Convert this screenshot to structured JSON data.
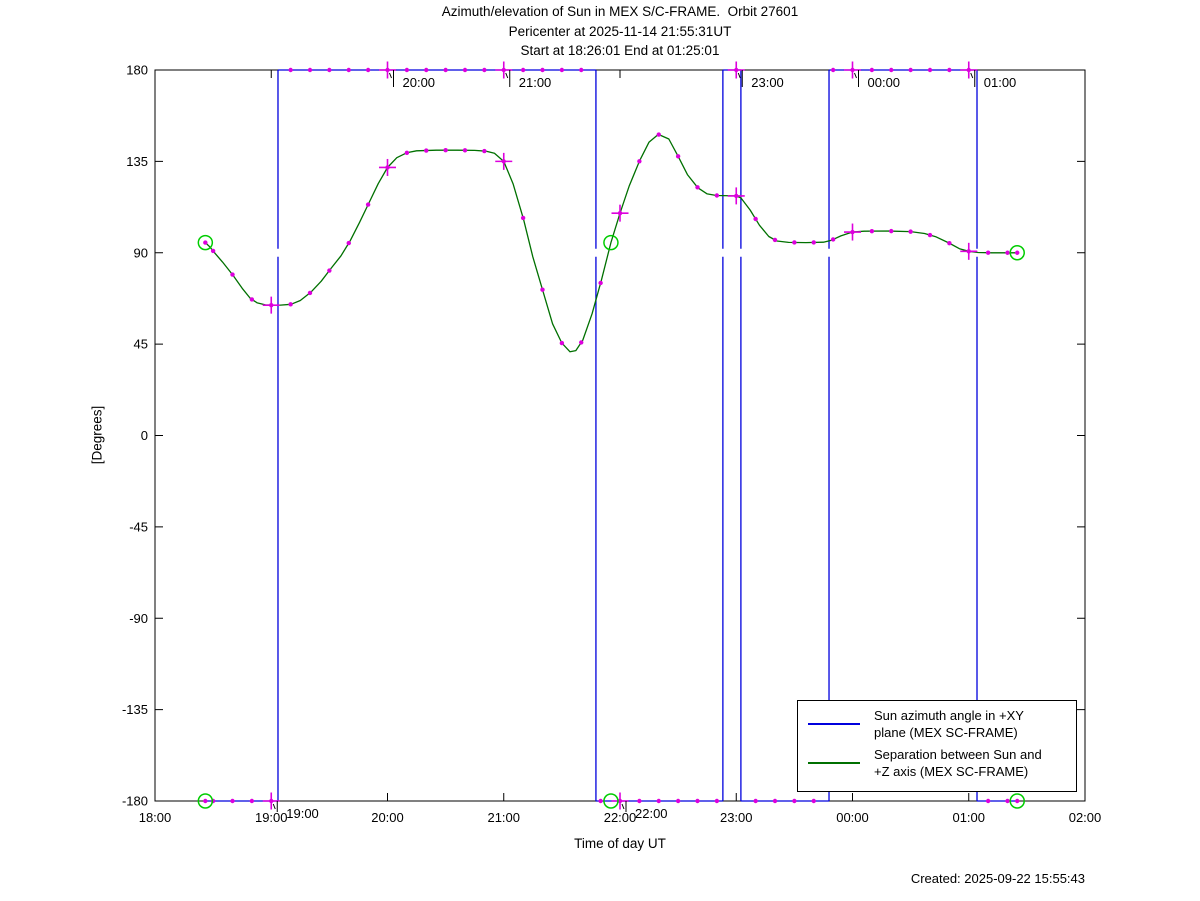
{
  "title": {
    "line1": "Azimuth/elevation of Sun in MEX S/C-FRAME.  Orbit 27601",
    "line2": "Pericenter at 2025-11-14 21:55:31UT",
    "line3": "Start at 18:26:01 End at 01:25:01"
  },
  "created": "Created: 2025-09-22 15:55:43",
  "legend": {
    "entries": [
      {
        "color": "#0000dd",
        "lines": [
          "Sun azimuth angle in +XY",
          "plane (MEX SC-FRAME)"
        ]
      },
      {
        "color": "#007000",
        "lines": [
          "Separation between Sun and",
          "+Z axis (MEX SC-FRAME)"
        ]
      }
    ]
  },
  "chart_data": {
    "type": "line",
    "title": "Azimuth/elevation of Sun in MEX S/C-FRAME. Orbit 27601",
    "xlabel": "Time of day UT",
    "ylabel": "[Degrees]",
    "xlim_hours": [
      18,
      26
    ],
    "ylim": [
      -180,
      180
    ],
    "x_ticks": [
      {
        "t": 18,
        "label": "18:00"
      },
      {
        "t": 19,
        "label": "19:00"
      },
      {
        "t": 20,
        "label": "20:00"
      },
      {
        "t": 21,
        "label": "21:00"
      },
      {
        "t": 22,
        "label": "22:00"
      },
      {
        "t": 23,
        "label": "23:00"
      },
      {
        "t": 24,
        "label": "00:00"
      },
      {
        "t": 25,
        "label": "01:00"
      },
      {
        "t": 26,
        "label": "02:00"
      }
    ],
    "y_ticks": [
      180,
      135,
      90,
      45,
      0,
      -45,
      -90,
      -135,
      -180
    ],
    "colors": {
      "azimuth": "#0000dd",
      "separation": "#007000",
      "marker": "#dd00dd",
      "event_circle": "#00cc00",
      "axis": "#000000"
    },
    "marker_interval_minutes": 10,
    "series": [
      {
        "name": "Sun azimuth angle in +XY plane (MEX SC-FRAME)",
        "style": "step",
        "segments": [
          [
            -180,
            18.433,
            19.058
          ],
          [
            180,
            19.058,
            21.793
          ],
          [
            -180,
            21.793,
            22.885
          ],
          [
            180,
            22.885,
            23.04
          ],
          [
            -180,
            23.04,
            23.798
          ],
          [
            180,
            23.798,
            25.071
          ],
          [
            -180,
            25.071,
            25.417
          ]
        ],
        "jump_gap_at_deg": 90
      },
      {
        "name": "Separation between Sun and +Z axis (MEX SC-FRAME)",
        "style": "smooth",
        "points": [
          [
            18.433,
            95
          ],
          [
            18.47,
            93
          ],
          [
            18.52,
            89.5
          ],
          [
            18.58,
            85.5
          ],
          [
            18.67,
            79
          ],
          [
            18.75,
            72.5
          ],
          [
            18.82,
            67.5
          ],
          [
            18.88,
            65.3
          ],
          [
            18.95,
            64.3
          ],
          [
            19.0,
            64.2
          ],
          [
            19.08,
            64.2
          ],
          [
            19.17,
            64.6
          ],
          [
            19.25,
            66.5
          ],
          [
            19.34,
            70.5
          ],
          [
            19.43,
            76
          ],
          [
            19.51,
            82
          ],
          [
            19.6,
            88.5
          ],
          [
            19.68,
            96
          ],
          [
            19.76,
            105
          ],
          [
            19.84,
            114.5
          ],
          [
            19.92,
            124
          ],
          [
            20.0,
            132
          ],
          [
            20.08,
            136.8
          ],
          [
            20.17,
            139.3
          ],
          [
            20.25,
            140.2
          ],
          [
            20.42,
            140.5
          ],
          [
            20.6,
            140.5
          ],
          [
            20.75,
            140.4
          ],
          [
            20.85,
            140
          ],
          [
            20.92,
            139
          ],
          [
            21.0,
            135
          ],
          [
            21.08,
            124
          ],
          [
            21.17,
            106.5
          ],
          [
            21.25,
            88
          ],
          [
            21.34,
            70.5
          ],
          [
            21.42,
            55
          ],
          [
            21.5,
            45.5
          ],
          [
            21.57,
            41.2
          ],
          [
            21.62,
            41.8
          ],
          [
            21.68,
            47
          ],
          [
            21.76,
            60
          ],
          [
            21.84,
            76.5
          ],
          [
            21.922,
            95
          ],
          [
            22.0,
            109.5
          ],
          [
            22.08,
            123
          ],
          [
            22.17,
            135.5
          ],
          [
            22.25,
            144.5
          ],
          [
            22.33,
            148.3
          ],
          [
            22.42,
            146
          ],
          [
            22.5,
            137.5
          ],
          [
            22.58,
            128.5
          ],
          [
            22.67,
            122
          ],
          [
            22.75,
            119
          ],
          [
            22.83,
            118.2
          ],
          [
            23.0,
            118
          ],
          [
            23.04,
            117
          ],
          [
            23.12,
            111
          ],
          [
            23.2,
            103.5
          ],
          [
            23.28,
            98
          ],
          [
            23.35,
            95.8
          ],
          [
            23.45,
            95.1
          ],
          [
            23.6,
            95
          ],
          [
            23.75,
            95.2
          ],
          [
            23.82,
            96.2
          ],
          [
            23.9,
            98.3
          ],
          [
            24.0,
            100.2
          ],
          [
            24.1,
            100.6
          ],
          [
            24.3,
            100.7
          ],
          [
            24.5,
            100.4
          ],
          [
            24.62,
            99.5
          ],
          [
            24.72,
            97.8
          ],
          [
            24.83,
            94.8
          ],
          [
            24.92,
            92
          ],
          [
            25.0,
            90.7
          ],
          [
            25.08,
            90.1
          ],
          [
            25.2,
            90
          ],
          [
            25.417,
            90
          ]
        ]
      }
    ],
    "hour_markers": [
      {
        "t": 19,
        "label": "19:00",
        "azimuth": -180,
        "separation": 64.2
      },
      {
        "t": 20,
        "label": "20:00",
        "azimuth": 180,
        "separation": 132
      },
      {
        "t": 21,
        "label": "21:00",
        "azimuth": 180,
        "separation": 135
      },
      {
        "t": 22,
        "label": "22:00",
        "azimuth": -180,
        "separation": 109.5
      },
      {
        "t": 23,
        "label": "23:00",
        "azimuth": 180,
        "separation": 118
      },
      {
        "t": 24,
        "label": "00:00",
        "azimuth": 180,
        "separation": 100.2
      },
      {
        "t": 25,
        "label": "01:00",
        "azimuth": 180,
        "separation": 90.7
      }
    ],
    "hour_annotations": [
      {
        "t": 19,
        "label": "19:00",
        "side": "bottom"
      },
      {
        "t": 20,
        "label": "20:00",
        "side": "top"
      },
      {
        "t": 21,
        "label": "21:00",
        "side": "top"
      },
      {
        "t": 22,
        "label": "22:00",
        "side": "bottom"
      },
      {
        "t": 23,
        "label": "23:00",
        "side": "top"
      },
      {
        "t": 24,
        "label": "00:00",
        "side": "top"
      },
      {
        "t": 25,
        "label": "01:00",
        "side": "top"
      }
    ],
    "event_markers": [
      {
        "name": "start",
        "t": 18.433,
        "azimuth": -180,
        "separation": 95
      },
      {
        "name": "pericenter",
        "t": 21.922,
        "azimuth": -180,
        "separation": 95
      },
      {
        "name": "end",
        "t": 25.417,
        "azimuth": -180,
        "separation": 90
      }
    ]
  }
}
